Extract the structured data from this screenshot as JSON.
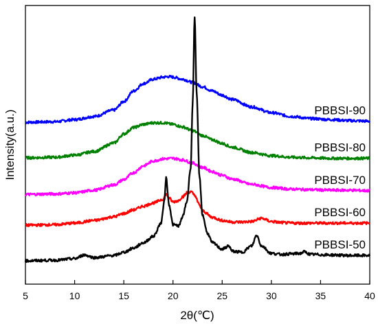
{
  "chart_data": {
    "type": "line",
    "xlabel": "2θ(℃)",
    "ylabel": "Intensity(a.u.)",
    "xlim": [
      5,
      40
    ],
    "xticks": [
      5,
      10,
      15,
      20,
      25,
      30,
      35,
      40
    ],
    "yticks_shown": false,
    "grid": false,
    "legend": "inline labels at right end of each curve",
    "series": [
      {
        "name": "PBBSI-90",
        "color": "#0000ff",
        "x": [
          5,
          8,
          10,
          12,
          14,
          15,
          16,
          17,
          18,
          19,
          19.5,
          20,
          21,
          22,
          23,
          24,
          25,
          26,
          28,
          30,
          32,
          34,
          36,
          38,
          40
        ],
        "y": [
          2.75,
          2.76,
          2.8,
          2.86,
          2.98,
          3.14,
          3.34,
          3.48,
          3.56,
          3.6,
          3.61,
          3.6,
          3.56,
          3.5,
          3.42,
          3.34,
          3.26,
          3.18,
          3.04,
          2.93,
          2.86,
          2.82,
          2.8,
          2.78,
          2.77
        ]
      },
      {
        "name": "PBBSI-80",
        "color": "#008000",
        "x": [
          5,
          8,
          10,
          12,
          14,
          15,
          16,
          17,
          18,
          19,
          20,
          21,
          22,
          23,
          24,
          25,
          26,
          28,
          30,
          32,
          34,
          36,
          38,
          40
        ],
        "y": [
          2.08,
          2.09,
          2.13,
          2.2,
          2.36,
          2.53,
          2.65,
          2.71,
          2.74,
          2.74,
          2.71,
          2.66,
          2.59,
          2.5,
          2.42,
          2.35,
          2.28,
          2.18,
          2.12,
          2.09,
          2.08,
          2.07,
          2.07,
          2.07
        ]
      },
      {
        "name": "PBBSI-70",
        "color": "#ff00ff",
        "x": [
          5,
          8,
          10,
          12,
          14,
          15,
          16,
          17,
          18,
          19,
          20,
          21,
          22,
          23,
          24,
          25,
          26,
          28,
          30,
          32,
          34,
          36,
          38,
          40
        ],
        "y": [
          1.39,
          1.4,
          1.42,
          1.47,
          1.57,
          1.67,
          1.8,
          1.93,
          2.02,
          2.06,
          2.07,
          2.04,
          1.98,
          1.9,
          1.82,
          1.75,
          1.68,
          1.58,
          1.52,
          1.49,
          1.48,
          1.47,
          1.47,
          1.46
        ]
      },
      {
        "name": "PBBSI-60",
        "color": "#ff0000",
        "x": [
          5,
          8,
          10,
          12,
          14,
          15,
          16,
          17,
          18,
          19,
          19.3,
          19.6,
          20,
          20.5,
          21,
          21.5,
          21.8,
          22.2,
          22.6,
          23,
          24,
          25,
          26,
          27,
          28,
          29,
          30,
          31,
          32,
          34,
          36,
          38,
          40
        ],
        "y": [
          0.81,
          0.82,
          0.85,
          0.9,
          0.97,
          1.03,
          1.1,
          1.17,
          1.23,
          1.3,
          1.4,
          1.32,
          1.25,
          1.27,
          1.35,
          1.43,
          1.44,
          1.38,
          1.22,
          1.08,
          0.96,
          0.9,
          0.87,
          0.87,
          0.88,
          0.94,
          0.88,
          0.86,
          0.85,
          0.85,
          0.85,
          0.85,
          0.85
        ]
      },
      {
        "name": "PBBSI-50",
        "color": "#000000",
        "x": [
          5,
          8,
          10,
          11,
          12,
          14,
          15,
          16,
          17,
          18,
          18.8,
          19.1,
          19.3,
          19.6,
          20,
          20.6,
          21,
          21.4,
          21.8,
          22,
          22.2,
          22.4,
          22.7,
          23,
          23.5,
          24,
          25,
          25.7,
          26,
          27,
          28,
          28.5,
          29,
          30,
          31,
          32,
          33,
          33.3,
          34,
          36,
          38,
          40
        ],
        "y": [
          0.14,
          0.15,
          0.18,
          0.25,
          0.2,
          0.24,
          0.3,
          0.38,
          0.48,
          0.6,
          0.85,
          1.25,
          1.7,
          1.2,
          0.82,
          0.8,
          0.98,
          1.25,
          1.9,
          3.1,
          4.75,
          3.3,
          1.7,
          1.0,
          0.66,
          0.48,
          0.36,
          0.42,
          0.32,
          0.3,
          0.42,
          0.62,
          0.42,
          0.28,
          0.26,
          0.27,
          0.28,
          0.31,
          0.26,
          0.25,
          0.24,
          0.24
        ]
      }
    ]
  }
}
